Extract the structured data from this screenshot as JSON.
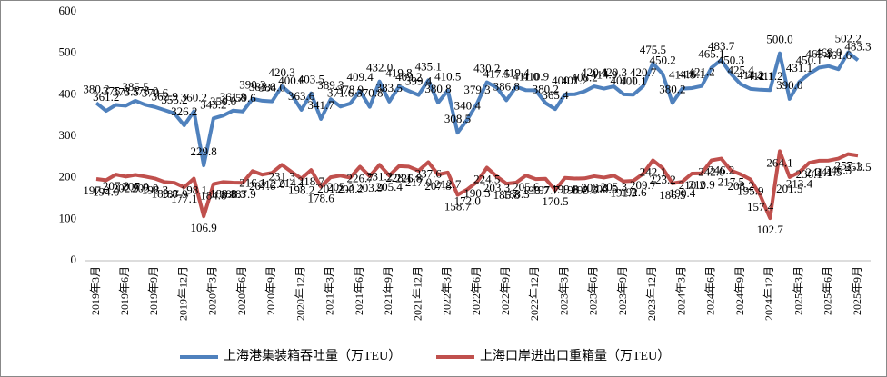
{
  "chart_data": {
    "type": "line",
    "categories": [
      "2019年3月",
      null,
      null,
      "2019年6月",
      null,
      null,
      "2019年9月",
      null,
      null,
      "2019年12月",
      null,
      null,
      "2020年3月",
      null,
      null,
      "2020年6月",
      null,
      null,
      "2020年9月",
      null,
      null,
      "2020年12月",
      null,
      null,
      "2021年3月",
      null,
      null,
      "2021年6月",
      null,
      null,
      "2021年9月",
      null,
      null,
      "2021年12月",
      null,
      null,
      "2022年3月",
      null,
      null,
      "2022年6月",
      null,
      null,
      "2022年9月",
      null,
      null,
      "2022年12月",
      null,
      null,
      "2023年3月",
      null,
      null,
      "2023年6月",
      null,
      null,
      "2023年9月",
      null,
      null,
      "2023年12月",
      null,
      null,
      "2024年3月",
      null,
      null,
      "2024年6月",
      null,
      null,
      "2024年9月",
      null,
      null,
      "2024年12月",
      null,
      null,
      "2025年3月",
      null,
      null,
      "2025年6月",
      null,
      null,
      "2025年9月"
    ],
    "series": [
      {
        "name": "上海港集装箱吞吐量（万TEU）",
        "color": "#4f81bd",
        "values": [
          380.2,
          361.2,
          375.6,
          373.5,
          385.5,
          376.0,
          370.6,
          362.9,
          355.2,
          326.2,
          360.2,
          229.8,
          343.2,
          350.0,
          361.8,
          359.6,
          390.3,
          385.6,
          384.0,
          420.3,
          400.6,
          363.6,
          403.5,
          341.7,
          389.3,
          371.6,
          378.9,
          409.4,
          370.8,
          432.0,
          383.5,
          419.8,
          409.2,
          399.4,
          435.1,
          380.8,
          410.5,
          308.5,
          340.4,
          379.3,
          430.2,
          417.5,
          386.8,
          419.4,
          411.0,
          410.9,
          380.2,
          365.4,
          400.7,
          401.2,
          408.2,
          420.4,
          414.9,
          420.3,
          401.1,
          400.1,
          420.7,
          475.5,
          450.2,
          380.2,
          414.8,
          416.1,
          421.2,
          465.1,
          483.7,
          450.3,
          425.4,
          414.2,
          412.1,
          411.2,
          500.0,
          390.0,
          431.1,
          450.1,
          465.3,
          469.0,
          461.6,
          502.2,
          483.3
        ],
        "value_labels": [
          "380.2",
          "361.2",
          "375.6",
          "373.5",
          "385.5",
          "376.0",
          "370.6",
          "362.9",
          "355.2",
          "326.2",
          "360.2",
          "229.8",
          "343.2",
          "350.0",
          "361.8",
          "359.6",
          "390.3",
          "385.6",
          "384.0",
          "420.3",
          "400.6",
          "363.6",
          "403.5",
          "341.7",
          "389.3",
          "371.6",
          "378.9",
          "409.4",
          "370.8",
          "432.0",
          "383.5",
          "419.8",
          "409.2",
          "399.4",
          "435.1",
          "380.8",
          "410.5",
          "308.5",
          "340.4",
          "379.3",
          "430.2",
          "417.5",
          "386.8",
          "419.4",
          "411.0",
          "410.9",
          "380.2",
          "365.4",
          "400.7",
          "401.2",
          "408.2",
          "420.4",
          "414.9",
          "420.3",
          "401.1",
          "400.1",
          "420.7",
          "475.5",
          "450.2",
          "380.2",
          "414.8",
          "416.1",
          "421.2",
          "465.1",
          "483.7",
          "450.3",
          "425.4",
          "414.2",
          "412.1",
          "411.2",
          "500.0",
          "390.0",
          "431.1",
          "450.1",
          "465.3",
          "469.0",
          "461.6",
          "502.2",
          "483.3"
        ]
      },
      {
        "name": "上海口岸进出口重箱量（万TEU）",
        "color": "#c0504d",
        "values": [
          197.0,
          194.0,
          207.8,
          202.9,
          207.0,
          203.0,
          198.3,
          189.8,
          187.9,
          177.1,
          198.1,
          106.9,
          184.8,
          189.8,
          188.3,
          187.9,
          216.1,
          207.6,
          212.0,
          231.3,
          214.1,
          198.2,
          218.7,
          178.6,
          201.2,
          205.3,
          200.2,
          226.7,
          203.9,
          231.2,
          205.4,
          228.1,
          226.8,
          217.0,
          237.6,
          207.8,
          212.7,
          158.7,
          172.0,
          190.3,
          224.5,
          203.3,
          185.8,
          188.3,
          205.6,
          196.7,
          197.7,
          170.5,
          199.8,
          198.2,
          198.6,
          203.8,
          200.5,
          205.3,
          191.3,
          192.6,
          209.7,
          242.1,
          223.2,
          186.5,
          190.4,
          210.2,
          210.9,
          242.0,
          246.2,
          217.5,
          208.2,
          195.9,
          157.4,
          102.7,
          264.1,
          201.5,
          213.4,
          236.1,
          241.1,
          241.5,
          246.3,
          257.1,
          253.5
        ],
        "value_labels": [
          "197.0",
          "194.0",
          "207.8",
          "202.9",
          "207.0",
          "203.0",
          "198.3",
          "189.8",
          "187.9",
          "177.1",
          "198.1",
          "106.9",
          "184.8",
          "189.8",
          "188.3",
          "187.9",
          "216.1",
          "207.6",
          "212.0",
          "231.3",
          "214.1",
          "198.2",
          "218.7",
          "178.6",
          "201.2",
          "205.3",
          "200.2",
          "226.7",
          "203.9",
          "231.2",
          "205.4",
          "228.1",
          "226.8",
          "217.0",
          "237.6",
          "207.8",
          "212.7",
          "158.7",
          "172.0",
          "190.3",
          "224.5",
          "203.3",
          "185.8",
          "188.3",
          "205.6",
          "196.7",
          "197.7",
          "170.5",
          "199.8",
          "198.2",
          "198.6",
          "203.8",
          "200.5",
          "205.3",
          "191.3",
          "192.6",
          "209.7",
          "242.1",
          "223.2",
          "186.5",
          "190.4",
          "210.2",
          "210.9",
          "242.0",
          "246.2",
          "217.5",
          "208.2",
          "195.9",
          "157.4",
          "102.7",
          "264.1",
          "201.5",
          "213.4",
          "236.1",
          "241.1",
          "241.5",
          "246.3",
          "257.1",
          "253.5"
        ]
      }
    ],
    "ylim": [
      0,
      600
    ],
    "yticks": [
      0,
      100,
      200,
      300,
      400,
      500,
      600
    ],
    "grid": false,
    "legend": "bottom"
  }
}
